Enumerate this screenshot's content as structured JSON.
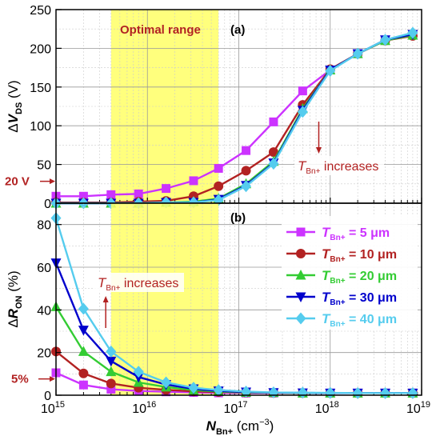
{
  "chart_data": [
    {
      "type": "line",
      "panel_label": "(a)",
      "xscale": "log",
      "x_label": {
        "main": "N",
        "sub": "Bn+",
        "unit": " (cm",
        "unit_sup": "−3",
        "unit_close": ")"
      },
      "y_label": {
        "prefix": "Δ",
        "main": "V",
        "sub": "DS",
        "unit": " (V)"
      },
      "ylim": [
        0,
        250
      ],
      "yticks": [
        "0",
        "50",
        "100",
        "150",
        "200",
        "250"
      ],
      "grid": true,
      "shaded_region": {
        "label": "Optimal range",
        "x_from": 4000000000000000.0,
        "x_to": 6e+16,
        "color": "#ffff66"
      },
      "annotation": {
        "main": "T",
        "sub": "Bn+",
        "text": " increases",
        "arrow": "down",
        "x": 7.5e+17
      },
      "marker_label": {
        "text": "20 V",
        "value": 20
      },
      "series": [
        {
          "legend": "5 μm",
          "color": "#cc33ff",
          "marker": "square",
          "x": [
            1000000000000000.0,
            2000000000000000.0,
            4000000000000000.0,
            8000000000000000.0,
            1.6e+16,
            3.2e+16,
            6e+16,
            1.2e+17,
            2.4e+17,
            5e+17,
            1e+18,
            2e+18,
            4e+18,
            8e+18
          ],
          "y": [
            9,
            9,
            11,
            12,
            19,
            29,
            45,
            68,
            105,
            145,
            172,
            193,
            210,
            218
          ]
        },
        {
          "legend": "10 μm",
          "color": "#b22222",
          "marker": "circle",
          "x": [
            1000000000000000.0,
            2000000000000000.0,
            4000000000000000.0,
            8000000000000000.0,
            1.6e+16,
            3.2e+16,
            6e+16,
            1.2e+17,
            2.4e+17,
            5e+17,
            1e+18,
            2e+18,
            4e+18,
            8e+18
          ],
          "y": [
            1,
            1,
            1,
            2,
            3,
            9,
            22,
            42,
            66,
            127,
            173,
            193,
            210,
            216
          ]
        },
        {
          "legend": "20 μm",
          "color": "#33cc33",
          "marker": "triangle-up",
          "x": [
            1000000000000000.0,
            2000000000000000.0,
            4000000000000000.0,
            8000000000000000.0,
            1.6e+16,
            3.2e+16,
            6e+16,
            1.2e+17,
            2.4e+17,
            5e+17,
            1e+18,
            2e+18,
            4e+18,
            8e+18
          ],
          "y": [
            0,
            0,
            0,
            0,
            1,
            2,
            6,
            25,
            54,
            122,
            172,
            193,
            210,
            217
          ]
        },
        {
          "legend": "30 μm",
          "color": "#0000cc",
          "marker": "triangle-down",
          "x": [
            1000000000000000.0,
            2000000000000000.0,
            4000000000000000.0,
            8000000000000000.0,
            1.6e+16,
            3.2e+16,
            6e+16,
            1.2e+17,
            2.4e+17,
            5e+17,
            1e+18,
            2e+18,
            4e+18,
            8e+18
          ],
          "y": [
            0,
            0,
            0,
            0,
            1,
            1,
            5,
            23,
            52,
            120,
            172,
            193,
            211,
            218
          ]
        },
        {
          "legend": "40 μm",
          "color": "#55ccee",
          "marker": "diamond",
          "x": [
            1000000000000000.0,
            2000000000000000.0,
            4000000000000000.0,
            8000000000000000.0,
            1.6e+16,
            3.2e+16,
            6e+16,
            1.2e+17,
            2.4e+17,
            5e+17,
            1e+18,
            2e+18,
            4e+18,
            8e+18
          ],
          "y": [
            0,
            0,
            0,
            0,
            1,
            1,
            4,
            22,
            51,
            118,
            171,
            193,
            211,
            220
          ]
        }
      ]
    },
    {
      "type": "line",
      "panel_label": "(b)",
      "xscale": "log",
      "x_label": {
        "main": "N",
        "sub": "Bn+",
        "unit": " (cm",
        "unit_sup": "−3",
        "unit_close": ")"
      },
      "y_label": {
        "prefix": "Δ",
        "main": "R",
        "sub": "ON",
        "unit": " (%)"
      },
      "ylim": [
        0,
        90
      ],
      "yticks": [
        "0",
        "20",
        "40",
        "60",
        "80"
      ],
      "xticks": [
        {
          "base": "10",
          "exp": "15"
        },
        {
          "base": "10",
          "exp": "16"
        },
        {
          "base": "10",
          "exp": "17"
        },
        {
          "base": "10",
          "exp": "18"
        },
        {
          "base": "10",
          "exp": "19"
        }
      ],
      "grid": true,
      "shaded_region": {
        "x_from": 4000000000000000.0,
        "x_to": 6e+16,
        "color": "#ffff66"
      },
      "annotation": {
        "main": "T",
        "sub": "Bn+",
        "text": " increases",
        "arrow": "up",
        "x": 3500000000000000.0
      },
      "marker_label": {
        "text": "5%",
        "value": 5
      },
      "legend": {
        "position": "top-right",
        "prefix_main": "T",
        "prefix_sub": "Bn+"
      },
      "series": [
        {
          "legend": " =  5 μm",
          "color": "#cc33ff",
          "marker": "square",
          "x": [
            1000000000000000.0,
            2000000000000000.0,
            4000000000000000.0,
            8000000000000000.0,
            1.6e+16,
            3.2e+16,
            6e+16,
            1.2e+17,
            2.4e+17,
            5e+17,
            1e+18,
            2e+18,
            4e+18,
            8e+18
          ],
          "y": [
            10.5,
            4.8,
            2.8,
            2,
            1.6,
            1.3,
            1.1,
            1,
            1,
            1,
            1,
            1,
            1,
            1
          ]
        },
        {
          "legend": " = 10 μm",
          "color": "#b22222",
          "marker": "circle",
          "x": [
            1000000000000000.0,
            2000000000000000.0,
            4000000000000000.0,
            8000000000000000.0,
            1.6e+16,
            3.2e+16,
            6e+16,
            1.2e+17,
            2.4e+17,
            5e+17,
            1e+18,
            2e+18,
            4e+18,
            8e+18
          ],
          "y": [
            20.5,
            10.2,
            5.5,
            3.5,
            2.5,
            1.8,
            1.5,
            1.2,
            1.1,
            1,
            1,
            1,
            1,
            1
          ]
        },
        {
          "legend": " = 20 μm",
          "color": "#33cc33",
          "marker": "triangle-up",
          "x": [
            1000000000000000.0,
            2000000000000000.0,
            4000000000000000.0,
            8000000000000000.0,
            1.6e+16,
            3.2e+16,
            6e+16,
            1.2e+17,
            2.4e+17,
            5e+17,
            1e+18,
            2e+18,
            4e+18,
            8e+18
          ],
          "y": [
            41.5,
            20.5,
            11,
            6,
            3.8,
            2.4,
            1.7,
            1.3,
            1.2,
            1,
            1,
            1,
            1,
            1
          ]
        },
        {
          "legend": " = 30 μm",
          "color": "#0000cc",
          "marker": "triangle-down",
          "x": [
            1000000000000000.0,
            2000000000000000.0,
            4000000000000000.0,
            8000000000000000.0,
            1.6e+16,
            3.2e+16,
            6e+16,
            1.2e+17,
            2.4e+17,
            5e+17,
            1e+18,
            2e+18,
            4e+18,
            8e+18
          ],
          "y": [
            62,
            30.5,
            16,
            8.5,
            5,
            3,
            2,
            1.5,
            1.2,
            1.1,
            1,
            1,
            1,
            1
          ]
        },
        {
          "legend": " = 40 μm",
          "color": "#55ccee",
          "marker": "diamond",
          "x": [
            1000000000000000.0,
            2000000000000000.0,
            4000000000000000.0,
            8000000000000000.0,
            1.6e+16,
            3.2e+16,
            6e+16,
            1.2e+17,
            2.4e+17,
            5e+17,
            1e+18,
            2e+18,
            4e+18,
            8e+18
          ],
          "y": [
            83,
            40.5,
            20.5,
            11,
            6,
            3.5,
            2.4,
            1.7,
            1.3,
            1.2,
            1.1,
            1,
            1,
            1
          ]
        }
      ]
    }
  ]
}
